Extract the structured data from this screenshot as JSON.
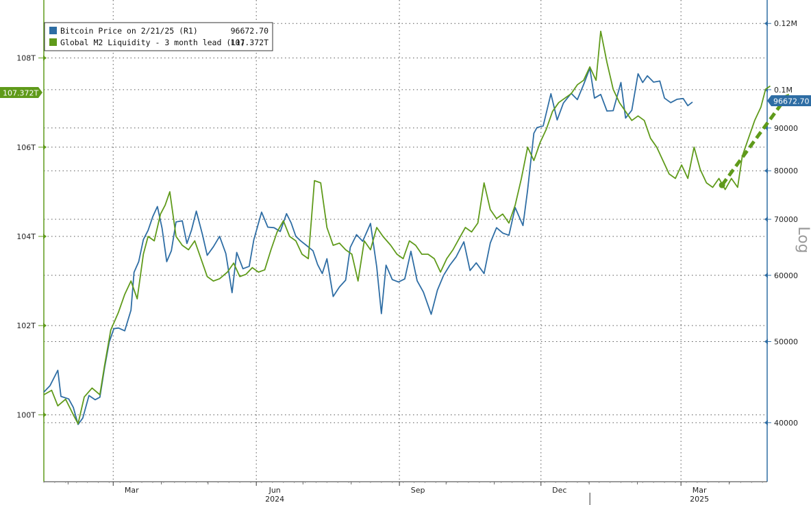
{
  "chart_data": {
    "type": "line",
    "scale_right": "log",
    "grid": "dotted",
    "legend_position": "top-left",
    "legend": {
      "entries": [
        {
          "label": "Bitcoin Price on 2/21/25 (R1)",
          "value": "96672.70",
          "color": "#2E6DA4"
        },
        {
          "label": "Global M2 Liquidity - 3 month lead (L1)",
          "value": "107.372T",
          "color": "#5F9A1A"
        }
      ]
    },
    "x_axis": {
      "domain": [
        "2024-01-01",
        "2025-04-10"
      ],
      "month_ticks": [
        {
          "label": "Mar",
          "date": "2024-03-01"
        },
        {
          "label": "Jun",
          "date": "2024-06-01"
        },
        {
          "label": "Sep",
          "date": "2024-09-01"
        },
        {
          "label": "Dec",
          "date": "2024-12-01"
        },
        {
          "label": "Mar",
          "date": "2025-03-01"
        }
      ],
      "minor_ticks": [
        "2024-02-01",
        "2024-04-01",
        "2024-05-01",
        "2024-07-01",
        "2024-08-01",
        "2024-10-01",
        "2024-11-01",
        "2025-01-01",
        "2025-02-01",
        "2025-04-01"
      ],
      "years": [
        {
          "label": "2024",
          "date": "2024-06-01"
        },
        {
          "label": "2025",
          "date": "2025-03-01"
        }
      ],
      "year_divider": "2025-01-01"
    },
    "left_axis": {
      "ylim": [
        98.5,
        109.3
      ],
      "ticks": [
        {
          "label": "100T",
          "value": 100
        },
        {
          "label": "102T",
          "value": 102
        },
        {
          "label": "104T",
          "value": 104
        },
        {
          "label": "106T",
          "value": 106
        },
        {
          "label": "108T",
          "value": 108
        }
      ],
      "last_value_label": "107.372T",
      "last_value": 107.372
    },
    "right_axis": {
      "ylim": [
        34000,
        128000
      ],
      "ticks": [
        {
          "label": "40000",
          "value": 40000
        },
        {
          "label": "50000",
          "value": 50000
        },
        {
          "label": "60000",
          "value": 60000
        },
        {
          "label": "70000",
          "value": 70000
        },
        {
          "label": "80000",
          "value": 80000
        },
        {
          "label": "90000",
          "value": 90000
        },
        {
          "label": "0.1M",
          "value": 100000
        },
        {
          "label": "0.12M",
          "value": 120000
        }
      ],
      "axis_title": "Log",
      "last_value_label": "96672.70",
      "last_value": 96672.7
    },
    "series": [
      {
        "name": "Bitcoin Price on 2/21/25 (R1)",
        "axis": "right",
        "color": "#2E6DA4",
        "points": [
          [
            "2024-01-01",
            43500
          ],
          [
            "2024-01-05",
            44300
          ],
          [
            "2024-01-10",
            46200
          ],
          [
            "2024-01-12",
            43000
          ],
          [
            "2024-01-17",
            42700
          ],
          [
            "2024-01-20",
            41700
          ],
          [
            "2024-01-23",
            39800
          ],
          [
            "2024-01-26",
            40500
          ],
          [
            "2024-01-30",
            43100
          ],
          [
            "2024-02-03",
            42600
          ],
          [
            "2024-02-06",
            42900
          ],
          [
            "2024-02-09",
            46500
          ],
          [
            "2024-02-12",
            49900
          ],
          [
            "2024-02-15",
            51800
          ],
          [
            "2024-02-18",
            51900
          ],
          [
            "2024-02-22",
            51500
          ],
          [
            "2024-02-26",
            54500
          ],
          [
            "2024-02-28",
            60500
          ],
          [
            "2024-03-02",
            62300
          ],
          [
            "2024-03-05",
            66200
          ],
          [
            "2024-03-08",
            67900
          ],
          [
            "2024-03-11",
            70500
          ],
          [
            "2024-03-14",
            72500
          ],
          [
            "2024-03-17",
            68300
          ],
          [
            "2024-03-20",
            62300
          ],
          [
            "2024-03-23",
            64200
          ],
          [
            "2024-03-26",
            69500
          ],
          [
            "2024-03-30",
            69700
          ],
          [
            "2024-04-02",
            65500
          ],
          [
            "2024-04-05",
            68000
          ],
          [
            "2024-04-08",
            71600
          ],
          [
            "2024-04-12",
            67100
          ],
          [
            "2024-04-15",
            63400
          ],
          [
            "2024-04-19",
            64900
          ],
          [
            "2024-04-23",
            66800
          ],
          [
            "2024-04-27",
            63700
          ],
          [
            "2024-05-01",
            57200
          ],
          [
            "2024-05-04",
            63900
          ],
          [
            "2024-05-08",
            61100
          ],
          [
            "2024-05-12",
            61500
          ],
          [
            "2024-05-15",
            66200
          ],
          [
            "2024-05-20",
            71400
          ],
          [
            "2024-05-24",
            68500
          ],
          [
            "2024-05-28",
            68400
          ],
          [
            "2024-06-01",
            67700
          ],
          [
            "2024-06-05",
            71100
          ],
          [
            "2024-06-08",
            69300
          ],
          [
            "2024-06-11",
            66800
          ],
          [
            "2024-06-14",
            66000
          ],
          [
            "2024-06-18",
            65100
          ],
          [
            "2024-06-22",
            64200
          ],
          [
            "2024-06-25",
            61800
          ],
          [
            "2024-06-28",
            60300
          ],
          [
            "2024-07-01",
            62800
          ],
          [
            "2024-07-05",
            56600
          ],
          [
            "2024-07-09",
            58100
          ],
          [
            "2024-07-13",
            59200
          ],
          [
            "2024-07-16",
            64800
          ],
          [
            "2024-07-20",
            67100
          ],
          [
            "2024-07-24",
            65900
          ],
          [
            "2024-07-29",
            69200
          ],
          [
            "2024-08-02",
            61400
          ],
          [
            "2024-08-05",
            54000
          ],
          [
            "2024-08-08",
            61700
          ],
          [
            "2024-08-12",
            59300
          ],
          [
            "2024-08-16",
            58900
          ],
          [
            "2024-08-20",
            59400
          ],
          [
            "2024-08-24",
            64100
          ],
          [
            "2024-08-28",
            59100
          ],
          [
            "2024-09-01",
            57300
          ],
          [
            "2024-09-06",
            53900
          ],
          [
            "2024-09-10",
            57600
          ],
          [
            "2024-09-14",
            60000
          ],
          [
            "2024-09-18",
            61700
          ],
          [
            "2024-09-22",
            63100
          ],
          [
            "2024-09-27",
            65800
          ],
          [
            "2024-10-01",
            60800
          ],
          [
            "2024-10-05",
            62100
          ],
          [
            "2024-10-10",
            60300
          ],
          [
            "2024-10-14",
            65600
          ],
          [
            "2024-10-18",
            68400
          ],
          [
            "2024-10-22",
            67400
          ],
          [
            "2024-10-26",
            67000
          ],
          [
            "2024-10-30",
            72300
          ],
          [
            "2024-11-04",
            68800
          ],
          [
            "2024-11-07",
            75900
          ],
          [
            "2024-11-11",
            88700
          ],
          [
            "2024-11-13",
            90100
          ],
          [
            "2024-11-17",
            90500
          ],
          [
            "2024-11-22",
            98900
          ],
          [
            "2024-11-26",
            92000
          ],
          [
            "2024-11-30",
            96400
          ],
          [
            "2024-12-05",
            99000
          ],
          [
            "2024-12-09",
            97300
          ],
          [
            "2024-12-13",
            101400
          ],
          [
            "2024-12-17",
            106100
          ],
          [
            "2024-12-20",
            97700
          ],
          [
            "2024-12-24",
            98700
          ],
          [
            "2024-12-28",
            94300
          ],
          [
            "2025-01-01",
            94400
          ],
          [
            "2025-01-06",
            102000
          ],
          [
            "2025-01-09",
            92500
          ],
          [
            "2025-01-13",
            94500
          ],
          [
            "2025-01-17",
            104500
          ],
          [
            "2025-01-20",
            102000
          ],
          [
            "2025-01-23",
            103900
          ],
          [
            "2025-01-27",
            102100
          ],
          [
            "2025-01-31",
            102400
          ],
          [
            "2025-02-03",
            97700
          ],
          [
            "2025-02-07",
            96500
          ],
          [
            "2025-02-11",
            97400
          ],
          [
            "2025-02-15",
            97600
          ],
          [
            "2025-02-18",
            95700
          ],
          [
            "2025-02-21",
            96672.7
          ]
        ]
      },
      {
        "name": "Global M2 Liquidity - 3 month lead (L1)",
        "axis": "left",
        "color": "#5F9A1A",
        "points": [
          [
            "2024-01-01",
            100.45
          ],
          [
            "2024-01-06",
            100.55
          ],
          [
            "2024-01-10",
            100.2
          ],
          [
            "2024-01-15",
            100.35
          ],
          [
            "2024-01-20",
            100.0
          ],
          [
            "2024-01-23",
            99.8
          ],
          [
            "2024-01-27",
            100.4
          ],
          [
            "2024-02-01",
            100.6
          ],
          [
            "2024-02-06",
            100.45
          ],
          [
            "2024-02-09",
            101.1
          ],
          [
            "2024-02-13",
            101.9
          ],
          [
            "2024-02-18",
            102.3
          ],
          [
            "2024-02-22",
            102.7
          ],
          [
            "2024-02-26",
            103.0
          ],
          [
            "2024-03-01",
            102.6
          ],
          [
            "2024-03-05",
            103.6
          ],
          [
            "2024-03-08",
            104.0
          ],
          [
            "2024-03-12",
            103.9
          ],
          [
            "2024-03-16",
            104.5
          ],
          [
            "2024-03-19",
            104.7
          ],
          [
            "2024-03-22",
            105.0
          ],
          [
            "2024-03-26",
            104.0
          ],
          [
            "2024-03-30",
            103.8
          ],
          [
            "2024-04-03",
            103.7
          ],
          [
            "2024-04-07",
            103.9
          ],
          [
            "2024-04-11",
            103.5
          ],
          [
            "2024-04-15",
            103.1
          ],
          [
            "2024-04-19",
            103.0
          ],
          [
            "2024-04-23",
            103.05
          ],
          [
            "2024-04-28",
            103.2
          ],
          [
            "2024-05-02",
            103.4
          ],
          [
            "2024-05-06",
            103.1
          ],
          [
            "2024-05-10",
            103.15
          ],
          [
            "2024-05-14",
            103.3
          ],
          [
            "2024-05-18",
            103.2
          ],
          [
            "2024-05-22",
            103.25
          ],
          [
            "2024-05-26",
            103.7
          ],
          [
            "2024-05-30",
            104.1
          ],
          [
            "2024-06-03",
            104.35
          ],
          [
            "2024-06-07",
            104.0
          ],
          [
            "2024-06-11",
            103.9
          ],
          [
            "2024-06-15",
            103.6
          ],
          [
            "2024-06-19",
            103.5
          ],
          [
            "2024-06-23",
            105.25
          ],
          [
            "2024-06-27",
            105.2
          ],
          [
            "2024-07-01",
            104.2
          ],
          [
            "2024-07-05",
            103.8
          ],
          [
            "2024-07-09",
            103.85
          ],
          [
            "2024-07-13",
            103.7
          ],
          [
            "2024-07-17",
            103.6
          ],
          [
            "2024-07-21",
            103.0
          ],
          [
            "2024-07-25",
            103.9
          ],
          [
            "2024-07-29",
            103.7
          ],
          [
            "2024-08-02",
            104.2
          ],
          [
            "2024-08-06",
            104.0
          ],
          [
            "2024-08-11",
            103.8
          ],
          [
            "2024-08-15",
            103.6
          ],
          [
            "2024-08-19",
            103.5
          ],
          [
            "2024-08-23",
            103.9
          ],
          [
            "2024-08-27",
            103.8
          ],
          [
            "2024-08-31",
            103.6
          ],
          [
            "2024-09-04",
            103.6
          ],
          [
            "2024-09-08",
            103.5
          ],
          [
            "2024-09-12",
            103.2
          ],
          [
            "2024-09-16",
            103.5
          ],
          [
            "2024-09-20",
            103.7
          ],
          [
            "2024-09-24",
            103.95
          ],
          [
            "2024-09-28",
            104.2
          ],
          [
            "2024-10-02",
            104.1
          ],
          [
            "2024-10-06",
            104.3
          ],
          [
            "2024-10-10",
            105.2
          ],
          [
            "2024-10-14",
            104.6
          ],
          [
            "2024-10-18",
            104.4
          ],
          [
            "2024-10-22",
            104.5
          ],
          [
            "2024-10-26",
            104.3
          ],
          [
            "2024-10-30",
            104.7
          ],
          [
            "2024-11-03",
            105.3
          ],
          [
            "2024-11-07",
            106.0
          ],
          [
            "2024-11-11",
            105.7
          ],
          [
            "2024-11-15",
            106.1
          ],
          [
            "2024-11-19",
            106.4
          ],
          [
            "2024-11-23",
            106.8
          ],
          [
            "2024-11-27",
            107.0
          ],
          [
            "2024-12-01",
            107.1
          ],
          [
            "2024-12-05",
            107.2
          ],
          [
            "2024-12-09",
            107.4
          ],
          [
            "2024-12-13",
            107.5
          ],
          [
            "2024-12-17",
            107.8
          ],
          [
            "2024-12-21",
            107.5
          ],
          [
            "2024-12-24",
            108.6
          ],
          [
            "2024-12-28",
            107.9
          ],
          [
            "2025-01-01",
            107.3
          ],
          [
            "2025-01-05",
            107.0
          ],
          [
            "2025-01-09",
            106.8
          ],
          [
            "2025-01-13",
            106.6
          ],
          [
            "2025-01-17",
            106.7
          ],
          [
            "2025-01-21",
            106.6
          ],
          [
            "2025-01-25",
            106.2
          ],
          [
            "2025-01-29",
            106.0
          ],
          [
            "2025-02-02",
            105.7
          ],
          [
            "2025-02-06",
            105.4
          ],
          [
            "2025-02-10",
            105.3
          ],
          [
            "2025-02-14",
            105.6
          ],
          [
            "2025-02-18",
            105.3
          ],
          [
            "2025-02-22",
            106.0
          ],
          [
            "2025-02-26",
            105.5
          ],
          [
            "2025-03-02",
            105.2
          ],
          [
            "2025-03-06",
            105.1
          ],
          [
            "2025-03-10",
            105.3
          ],
          [
            "2025-03-14",
            105.05
          ],
          [
            "2025-03-18",
            105.3
          ],
          [
            "2025-03-22",
            105.1
          ],
          [
            "2025-03-25",
            105.8
          ],
          [
            "2025-03-29",
            106.2
          ],
          [
            "2025-04-02",
            106.6
          ],
          [
            "2025-04-06",
            106.9
          ],
          [
            "2025-04-09",
            107.3
          ],
          [
            "2025-04-12",
            107.372
          ]
        ]
      }
    ],
    "arrow": {
      "from": [
        "2025-03-12",
        105.15
      ],
      "to": [
        "2025-04-24",
        107.2
      ],
      "axis": "left",
      "style": "dashed",
      "color": "#5F9A1A"
    }
  }
}
